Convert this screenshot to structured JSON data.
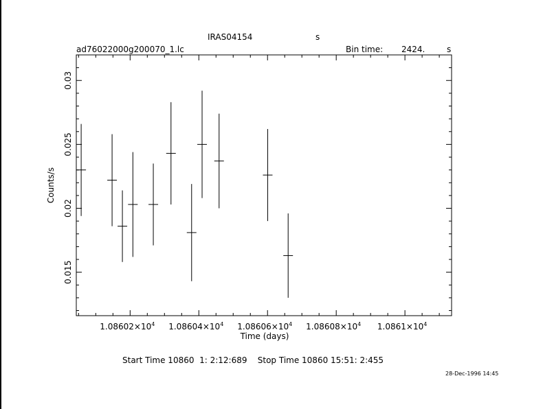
{
  "header": {
    "source_name": "IRAS04154",
    "source_unit": "s",
    "file_name": "ad76022000g200070_1.lc",
    "bin_time_label": "Bin time:",
    "bin_time_value": "2424.",
    "bin_time_unit": "s"
  },
  "footer": {
    "times": "Start Time 10860  1: 2:12:689    Stop Time 10860 15:51: 2:455",
    "date_stamp": "28-Dec-1996 14:45"
  },
  "chart_data": {
    "type": "scatter",
    "title": "IRAS04154",
    "xlabel": "Time (days)",
    "ylabel": "Counts/s",
    "xlim": [
      10860.0433,
      10861.1358
    ],
    "ylim": [
      0.0116,
      0.032
    ],
    "x_ticks": [
      10860.2,
      10860.4,
      10860.6,
      10860.8,
      10861.0
    ],
    "x_tick_labels": [
      {
        "mantissa": "1.08602×10",
        "exp": "4"
      },
      {
        "mantissa": "1.08604×10",
        "exp": "4"
      },
      {
        "mantissa": "1.08606×10",
        "exp": "4"
      },
      {
        "mantissa": "1.08608×10",
        "exp": "4"
      },
      {
        "mantissa": "1.0861×10",
        "exp": "4"
      }
    ],
    "y_ticks": [
      0.015,
      0.02,
      0.025,
      0.03
    ],
    "y_tick_labels": [
      "0.015",
      "0.02",
      "0.025",
      "0.03"
    ],
    "bin_half_width_days": 0.014,
    "points": [
      {
        "x": 10860.0575,
        "y": 0.023,
        "yerr": 0.0036
      },
      {
        "x": 10860.1475,
        "y": 0.0222,
        "yerr": 0.0036
      },
      {
        "x": 10860.1775,
        "y": 0.0186,
        "yerr": 0.0028
      },
      {
        "x": 10860.208,
        "y": 0.0203,
        "yerr": 0.0041
      },
      {
        "x": 10860.2675,
        "y": 0.0203,
        "yerr": 0.0032
      },
      {
        "x": 10860.319,
        "y": 0.0243,
        "yerr": 0.004
      },
      {
        "x": 10860.379,
        "y": 0.0181,
        "yerr": 0.0038
      },
      {
        "x": 10860.4095,
        "y": 0.025,
        "yerr": 0.0042
      },
      {
        "x": 10860.459,
        "y": 0.0237,
        "yerr": 0.0037
      },
      {
        "x": 10860.6005,
        "y": 0.0226,
        "yerr": 0.0036
      },
      {
        "x": 10860.66,
        "y": 0.0163,
        "yerr": 0.0033
      }
    ]
  }
}
